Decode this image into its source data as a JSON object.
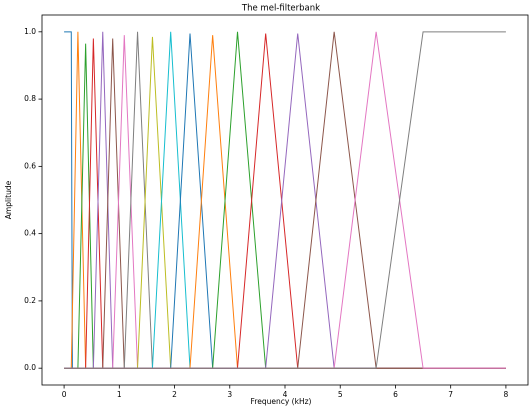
{
  "chart_data": {
    "type": "line",
    "title": "The mel-filterbank",
    "x_label": "Frequency (kHz)",
    "y_label": "Amplitude",
    "xlim": [
      -0.4,
      8.4
    ],
    "ylim": [
      -0.05,
      1.05
    ],
    "xticks": [
      0,
      1,
      2,
      3,
      4,
      5,
      6,
      7,
      8
    ],
    "yticks": [
      {
        "value": 0,
        "label": "0.0"
      },
      {
        "value": 0.2,
        "label": "0.2"
      },
      {
        "value": 0.4,
        "label": "0.4"
      },
      {
        "value": 0.6,
        "label": "0.6"
      },
      {
        "value": 0.8,
        "label": "0.8"
      },
      {
        "value": 1,
        "label": "1.0"
      }
    ],
    "series": [
      {
        "color": "#1f77b4",
        "x": [
          0,
          0.13,
          0.15,
          8
        ],
        "values": [
          1,
          1,
          0,
          0
        ]
      },
      {
        "color": "#ff7f0e",
        "x": [
          0,
          0.13,
          0.25,
          0.39,
          8
        ],
        "values": [
          0,
          0,
          1.0,
          0,
          0
        ]
      },
      {
        "color": "#2ca02c",
        "x": [
          0,
          0.25,
          0.39,
          0.53,
          8
        ],
        "values": [
          0,
          0,
          0.965,
          0,
          0
        ]
      },
      {
        "color": "#d62728",
        "x": [
          0,
          0.39,
          0.53,
          0.7,
          8
        ],
        "values": [
          0,
          0,
          0.98,
          0,
          0
        ]
      },
      {
        "color": "#9467bd",
        "x": [
          0,
          0.53,
          0.7,
          0.88,
          8
        ],
        "values": [
          0,
          0,
          1.0,
          0,
          0
        ]
      },
      {
        "color": "#8c564b",
        "x": [
          0,
          0.7,
          0.88,
          1.09,
          8
        ],
        "values": [
          0,
          0,
          0.98,
          0,
          0
        ]
      },
      {
        "color": "#e377c2",
        "x": [
          0,
          0.88,
          1.09,
          1.33,
          8
        ],
        "values": [
          0,
          0,
          0.99,
          0,
          0
        ]
      },
      {
        "color": "#7f7f7f",
        "x": [
          0,
          1.09,
          1.33,
          1.6,
          8
        ],
        "values": [
          0,
          0,
          1.0,
          0,
          0
        ]
      },
      {
        "color": "#bcbd22",
        "x": [
          0,
          1.33,
          1.6,
          1.93,
          8
        ],
        "values": [
          0,
          0,
          0.985,
          0,
          0
        ]
      },
      {
        "color": "#17becf",
        "x": [
          0,
          1.6,
          1.93,
          2.28,
          8
        ],
        "values": [
          0,
          0,
          1.0,
          0,
          0
        ]
      },
      {
        "color": "#1f77b4",
        "x": [
          0,
          1.93,
          2.28,
          2.69,
          8
        ],
        "values": [
          0,
          0,
          0.995,
          0,
          0
        ]
      },
      {
        "color": "#ff7f0e",
        "x": [
          0,
          2.28,
          2.69,
          3.14,
          8
        ],
        "values": [
          0,
          0,
          0.99,
          0,
          0
        ]
      },
      {
        "color": "#2ca02c",
        "x": [
          0,
          2.69,
          3.14,
          3.65,
          8
        ],
        "values": [
          0,
          0,
          1.0,
          0,
          0
        ]
      },
      {
        "color": "#d62728",
        "x": [
          0,
          3.14,
          3.65,
          4.23,
          8
        ],
        "values": [
          0,
          0,
          0.995,
          0,
          0
        ]
      },
      {
        "color": "#9467bd",
        "x": [
          0,
          3.65,
          4.23,
          4.89,
          8
        ],
        "values": [
          0,
          0,
          0.995,
          0,
          0
        ]
      },
      {
        "color": "#8c564b",
        "x": [
          0,
          4.23,
          4.89,
          5.65,
          8
        ],
        "values": [
          0,
          0,
          1.0,
          0,
          0
        ]
      },
      {
        "color": "#e377c2",
        "x": [
          0,
          4.89,
          5.65,
          6.5,
          8
        ],
        "values": [
          0,
          0,
          1.0,
          0,
          0
        ]
      },
      {
        "color": "#7f7f7f",
        "x": [
          0,
          5.65,
          6.5,
          8
        ],
        "values": [
          0,
          0,
          1,
          1
        ]
      }
    ]
  }
}
